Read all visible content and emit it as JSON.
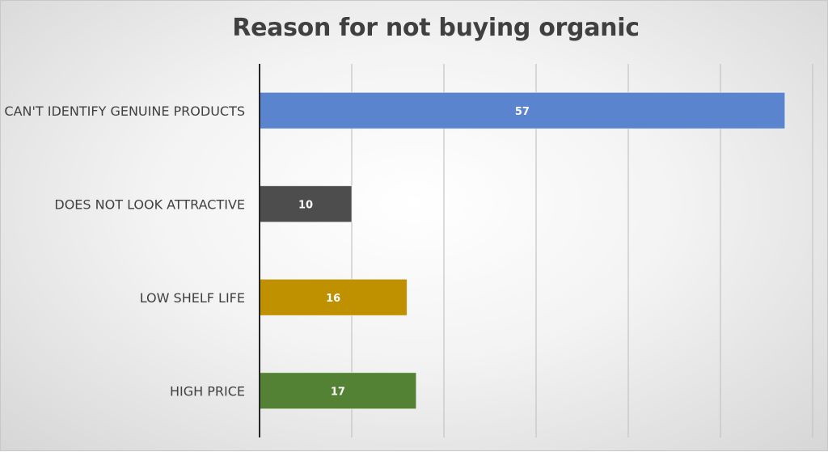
{
  "chart_data": {
    "type": "bar",
    "orientation": "horizontal",
    "title": "Reason for not buying organic",
    "categories": [
      "CAN'T IDENTIFY GENUINE PRODUCTS",
      "DOES NOT LOOK ATTRACTIVE",
      "LOW SHELF LIFE",
      "HIGH PRICE"
    ],
    "values": [
      57,
      10,
      16,
      17
    ],
    "colors": [
      "#5B84CF",
      "#4D4D4D",
      "#BF9000",
      "#548235"
    ],
    "xlabel": "",
    "ylabel": "",
    "xlim": [
      0,
      60
    ],
    "x_tick_step": 10,
    "x_tick_labels_shown": false,
    "grid": "vertical",
    "data_labels": true,
    "legend": "none"
  }
}
